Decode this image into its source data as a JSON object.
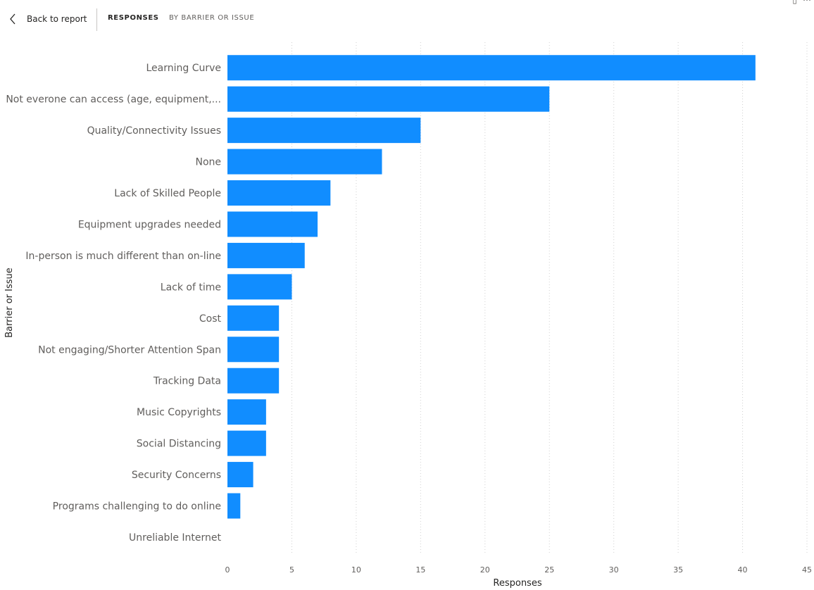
{
  "header": {
    "back_label": "Back to report",
    "title": "RESPONSES",
    "subtitle": "BY BARRIER OR ISSUE",
    "icons": [
      "focus-mode-icon",
      "more-options-icon"
    ]
  },
  "colors": {
    "bar": "#118DFF",
    "grid": "#d0d0d0",
    "text": "#252423",
    "muted": "#605e5c"
  },
  "chart_data": {
    "type": "bar",
    "orientation": "horizontal",
    "categories": [
      "Learning Curve",
      "Not everone can access (age, equipment,...",
      "Quality/Connectivity Issues",
      "None",
      "Lack of Skilled People",
      "Equipment upgrades needed",
      "In-person is much different than on-line",
      "Lack of time",
      "Cost",
      "Not engaging/Shorter Attention Span",
      "Tracking Data",
      "Music Copyrights",
      "Social Distancing",
      "Security Concerns",
      "Programs challenging to do online",
      "Unreliable Internet"
    ],
    "values": [
      41,
      25,
      15,
      12,
      8,
      7,
      6,
      5,
      4,
      4,
      4,
      3,
      3,
      2,
      1,
      0
    ],
    "xlabel": "Responses",
    "ylabel": "Barrier or Issue",
    "xlim": [
      0,
      45
    ],
    "xticks": [
      0,
      5,
      10,
      15,
      20,
      25,
      30,
      35,
      40,
      45
    ],
    "grid": true
  }
}
